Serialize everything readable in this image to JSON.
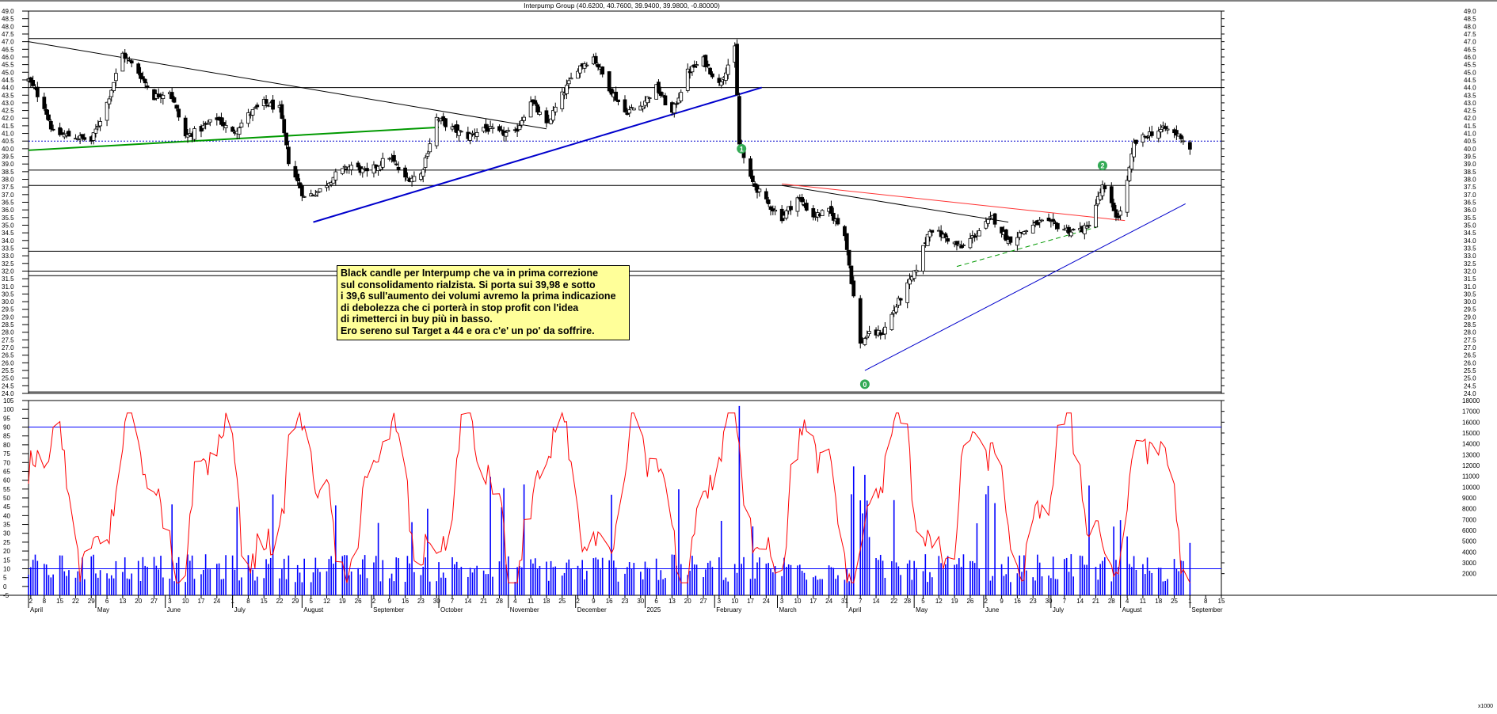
{
  "header": {
    "title": "Interpump Group (40.6200, 40.7600, 39.9400, 39.9800, -0.80000)"
  },
  "annotation": {
    "lines": [
      "Black candle per Interpump che va in prima correzione",
      "sul consolidamento rialzista. Si porta sui 39,98 e sotto",
      "i 39,6 sull'aumento dei volumi avremo la prima indicazione",
      "di debolezza che ci porterà in stop profit con l'idea",
      "di rimetterci in buy più in basso.",
      "Ero sereno sul Target a 44 e ora c'e' un po' da soffrire."
    ]
  },
  "markers": [
    {
      "label": "1",
      "date": "2025-02-13",
      "price": 40.0
    },
    {
      "label": "0",
      "date": "2025-04-09",
      "price": 24.6
    },
    {
      "label": "2",
      "date": "2025-07-24",
      "price": 38.9
    }
  ],
  "footer": {
    "volume_unit": "x1000"
  },
  "colors": {
    "price": "#000000",
    "oscillator": "#ff0000",
    "volume": "#0000ff",
    "trend_blue": "#0000cc",
    "trend_green": "#009900",
    "trend_red": "#ff3333",
    "marker": "#33aa55",
    "note_background": "#ffff99"
  },
  "chart_data": {
    "type": "candlestick",
    "title": "Interpump Group (40.6200, 40.7600, 39.9400, 39.9800, -0.80000)",
    "price_axis": {
      "min": 24.0,
      "max": 49.0,
      "step": 0.5,
      "side": "right"
    },
    "oscillator_axis": {
      "min": -5,
      "max": 105,
      "step": 5,
      "side": "left"
    },
    "volume_axis": {
      "min": 0,
      "max": 18000,
      "ticks": [
        2000,
        3000,
        4000,
        5000,
        6000,
        7000,
        8000,
        9000,
        10000,
        11000,
        12000,
        13000,
        14000,
        15000,
        16000,
        17000,
        18000
      ],
      "unit": "x1000",
      "side": "right"
    },
    "date_axis": {
      "start": "2024-04-01",
      "end": "2025-09-15"
    },
    "price_path": [
      [
        "2024-04-01",
        44.5
      ],
      [
        "2024-04-08",
        42.8
      ],
      [
        "2024-04-12",
        41.0
      ],
      [
        "2024-04-22",
        40.8
      ],
      [
        "2024-04-29",
        40.5
      ],
      [
        "2024-05-06",
        43.0
      ],
      [
        "2024-05-13",
        46.2
      ],
      [
        "2024-05-20",
        45.0
      ],
      [
        "2024-05-27",
        43.4
      ],
      [
        "2024-06-03",
        43.8
      ],
      [
        "2024-06-10",
        40.8
      ],
      [
        "2024-06-17",
        41.3
      ],
      [
        "2024-06-24",
        42.0
      ],
      [
        "2024-07-01",
        41.0
      ],
      [
        "2024-07-08",
        42.2
      ],
      [
        "2024-07-15",
        43.0
      ],
      [
        "2024-07-22",
        42.6
      ],
      [
        "2024-07-26",
        39.2
      ],
      [
        "2024-08-02",
        36.8
      ],
      [
        "2024-08-09",
        37.3
      ],
      [
        "2024-08-16",
        38.3
      ],
      [
        "2024-08-23",
        38.9
      ],
      [
        "2024-08-30",
        38.4
      ],
      [
        "2024-09-09",
        39.5
      ],
      [
        "2024-09-16",
        38.0
      ],
      [
        "2024-09-23",
        38.3
      ],
      [
        "2024-09-30",
        42.0
      ],
      [
        "2024-10-07",
        41.3
      ],
      [
        "2024-10-14",
        40.8
      ],
      [
        "2024-10-21",
        41.4
      ],
      [
        "2024-10-28",
        41.0
      ],
      [
        "2024-11-04",
        41.0
      ],
      [
        "2024-11-11",
        43.2
      ],
      [
        "2024-11-18",
        41.5
      ],
      [
        "2024-11-25",
        43.5
      ],
      [
        "2024-12-02",
        45.3
      ],
      [
        "2024-12-09",
        46.0
      ],
      [
        "2024-12-16",
        44.0
      ],
      [
        "2024-12-23",
        42.4
      ],
      [
        "2024-12-30",
        42.8
      ],
      [
        "2025-01-06",
        44.0
      ],
      [
        "2025-01-13",
        42.3
      ],
      [
        "2025-01-20",
        45.0
      ],
      [
        "2025-01-27",
        45.8
      ],
      [
        "2025-02-03",
        44.2
      ],
      [
        "2025-02-10",
        46.5
      ],
      [
        "2025-02-12",
        40.3
      ],
      [
        "2025-02-17",
        38.0
      ],
      [
        "2025-02-24",
        36.5
      ],
      [
        "2025-03-03",
        35.5
      ],
      [
        "2025-03-10",
        36.8
      ],
      [
        "2025-03-17",
        35.6
      ],
      [
        "2025-03-24",
        35.9
      ],
      [
        "2025-03-31",
        34.5
      ],
      [
        "2025-04-07",
        27.2
      ],
      [
        "2025-04-10",
        27.8
      ],
      [
        "2025-04-17",
        28.0
      ],
      [
        "2025-04-24",
        30.0
      ],
      [
        "2025-05-01",
        31.8
      ],
      [
        "2025-05-08",
        34.8
      ],
      [
        "2025-05-15",
        34.2
      ],
      [
        "2025-05-22",
        33.5
      ],
      [
        "2025-05-29",
        34.5
      ],
      [
        "2025-06-05",
        35.5
      ],
      [
        "2025-06-12",
        34.0
      ],
      [
        "2025-06-19",
        34.6
      ],
      [
        "2025-06-26",
        35.2
      ],
      [
        "2025-07-03",
        35.0
      ],
      [
        "2025-07-10",
        34.6
      ],
      [
        "2025-07-17",
        34.8
      ],
      [
        "2025-07-24",
        37.5
      ],
      [
        "2025-07-31",
        35.4
      ],
      [
        "2025-08-04",
        37.8
      ],
      [
        "2025-08-07",
        40.3
      ],
      [
        "2025-08-14",
        41.0
      ],
      [
        "2025-08-21",
        41.3
      ],
      [
        "2025-08-28",
        40.8
      ],
      [
        "2025-09-01",
        39.98
      ]
    ],
    "horizontal_levels": [
      47.2,
      44.0,
      40.5,
      38.6,
      37.6,
      33.3,
      32.0,
      31.7,
      24.1
    ],
    "trendlines": [
      {
        "from": [
          "2024-04-01",
          47.0
        ],
        "to": [
          "2024-11-18",
          41.3
        ],
        "color": "black"
      },
      {
        "from": [
          "2024-04-01",
          39.9
        ],
        "to": [
          "2024-10-01",
          41.4
        ],
        "color": "green"
      },
      {
        "from": [
          "2024-08-06",
          35.2
        ],
        "to": [
          "2025-02-22",
          44.0
        ],
        "color": "blue"
      },
      {
        "from": [
          "2025-03-03",
          37.7
        ],
        "to": [
          "2025-08-03",
          35.3
        ],
        "color": "red"
      },
      {
        "from": [
          "2025-03-03",
          37.6
        ],
        "to": [
          "2025-06-12",
          35.2
        ],
        "color": "black"
      },
      {
        "from": [
          "2025-04-09",
          25.5
        ],
        "to": [
          "2025-08-30",
          36.4
        ],
        "color": "blue"
      },
      {
        "from": [
          "2025-05-20",
          32.3
        ],
        "to": [
          "2025-07-22",
          34.9
        ],
        "color": "green-dashed"
      }
    ],
    "oscillator_levels": [
      90,
      10
    ],
    "month_labels": [
      {
        "label": "April",
        "date": "2024-04-01"
      },
      {
        "label": "May",
        "date": "2024-05-01"
      },
      {
        "label": "June",
        "date": "2024-06-01"
      },
      {
        "label": "July",
        "date": "2024-07-01"
      },
      {
        "label": "August",
        "date": "2024-08-01"
      },
      {
        "label": "September",
        "date": "2024-09-01"
      },
      {
        "label": "October",
        "date": "2024-10-01"
      },
      {
        "label": "November",
        "date": "2024-11-01"
      },
      {
        "label": "December",
        "date": "2024-12-01"
      },
      {
        "label": "2025",
        "date": "2025-01-01"
      },
      {
        "label": "February",
        "date": "2025-02-01"
      },
      {
        "label": "March",
        "date": "2025-03-01"
      },
      {
        "label": "April",
        "date": "2025-04-01"
      },
      {
        "label": "May",
        "date": "2025-05-01"
      },
      {
        "label": "June",
        "date": "2025-06-01"
      },
      {
        "label": "July",
        "date": "2025-07-01"
      },
      {
        "label": "August",
        "date": "2025-08-01"
      },
      {
        "label": "September",
        "date": "2025-09-01"
      }
    ],
    "day_labels": [
      [
        "2024-04-02",
        "2"
      ],
      [
        "2024-04-08",
        "8"
      ],
      [
        "2024-04-15",
        "15"
      ],
      [
        "2024-04-22",
        "22"
      ],
      [
        "2024-04-29",
        "29"
      ],
      [
        "2024-05-06",
        "6"
      ],
      [
        "2024-05-13",
        "13"
      ],
      [
        "2024-05-20",
        "20"
      ],
      [
        "2024-05-27",
        "27"
      ],
      [
        "2024-06-03",
        "3"
      ],
      [
        "2024-06-10",
        "10"
      ],
      [
        "2024-06-17",
        "17"
      ],
      [
        "2024-06-24",
        "24"
      ],
      [
        "2024-07-01",
        "1"
      ],
      [
        "2024-07-08",
        "8"
      ],
      [
        "2024-07-15",
        "15"
      ],
      [
        "2024-07-22",
        "22"
      ],
      [
        "2024-07-29",
        "29"
      ],
      [
        "2024-08-05",
        "5"
      ],
      [
        "2024-08-12",
        "12"
      ],
      [
        "2024-08-19",
        "19"
      ],
      [
        "2024-08-26",
        "26"
      ],
      [
        "2024-09-02",
        "2"
      ],
      [
        "2024-09-09",
        "9"
      ],
      [
        "2024-09-16",
        "16"
      ],
      [
        "2024-09-23",
        "23"
      ],
      [
        "2024-09-30",
        "30"
      ],
      [
        "2024-10-07",
        "7"
      ],
      [
        "2024-10-14",
        "14"
      ],
      [
        "2024-10-21",
        "21"
      ],
      [
        "2024-10-28",
        "28"
      ],
      [
        "2024-11-04",
        "4"
      ],
      [
        "2024-11-11",
        "11"
      ],
      [
        "2024-11-18",
        "18"
      ],
      [
        "2024-11-25",
        "25"
      ],
      [
        "2024-12-02",
        "2"
      ],
      [
        "2024-12-09",
        "9"
      ],
      [
        "2024-12-16",
        "16"
      ],
      [
        "2024-12-23",
        "23"
      ],
      [
        "2024-12-30",
        "30"
      ],
      [
        "2025-01-06",
        "6"
      ],
      [
        "2025-01-13",
        "13"
      ],
      [
        "2025-01-20",
        "20"
      ],
      [
        "2025-01-27",
        "27"
      ],
      [
        "2025-02-03",
        "3"
      ],
      [
        "2025-02-10",
        "10"
      ],
      [
        "2025-02-17",
        "17"
      ],
      [
        "2025-02-24",
        "24"
      ],
      [
        "2025-03-03",
        "3"
      ],
      [
        "2025-03-10",
        "10"
      ],
      [
        "2025-03-17",
        "17"
      ],
      [
        "2025-03-24",
        "24"
      ],
      [
        "2025-03-31",
        "31"
      ],
      [
        "2025-04-07",
        "7"
      ],
      [
        "2025-04-14",
        "14"
      ],
      [
        "2025-04-22",
        "22"
      ],
      [
        "2025-04-28",
        "28"
      ],
      [
        "2025-05-05",
        "5"
      ],
      [
        "2025-05-12",
        "12"
      ],
      [
        "2025-05-19",
        "19"
      ],
      [
        "2025-05-26",
        "26"
      ],
      [
        "2025-06-02",
        "2"
      ],
      [
        "2025-06-09",
        "9"
      ],
      [
        "2025-06-16",
        "16"
      ],
      [
        "2025-06-23",
        "23"
      ],
      [
        "2025-06-30",
        "30"
      ],
      [
        "2025-07-07",
        "7"
      ],
      [
        "2025-07-14",
        "14"
      ],
      [
        "2025-07-21",
        "21"
      ],
      [
        "2025-07-28",
        "28"
      ],
      [
        "2025-08-04",
        "4"
      ],
      [
        "2025-08-11",
        "11"
      ],
      [
        "2025-08-18",
        "18"
      ],
      [
        "2025-08-25",
        "25"
      ],
      [
        "2025-09-01",
        "1"
      ],
      [
        "2025-09-08",
        "8"
      ],
      [
        "2025-09-15",
        "15"
      ]
    ]
  }
}
